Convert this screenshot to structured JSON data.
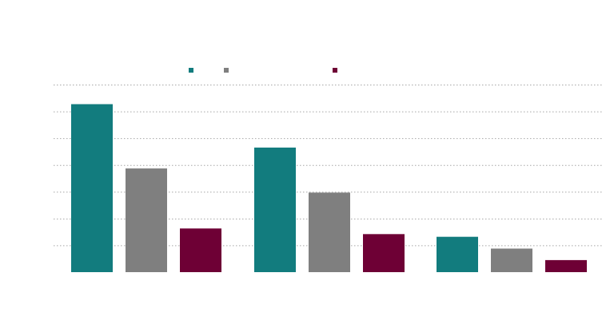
{
  "chart_data": {
    "type": "bar",
    "title": "",
    "xlabel": "",
    "ylabel": "",
    "categories": [
      "",
      "",
      ""
    ],
    "ylim": [
      0,
      7
    ],
    "grid": true,
    "legend_position": "top-center",
    "series": [
      {
        "color": "#127c7e",
        "values": [
          6.27,
          4.65,
          1.32
        ]
      },
      {
        "color": "#7f7f7f",
        "values": [
          3.87,
          2.97,
          0.88
        ]
      },
      {
        "color": "#6e0035",
        "values": [
          1.63,
          1.42,
          0.45
        ]
      }
    ]
  }
}
